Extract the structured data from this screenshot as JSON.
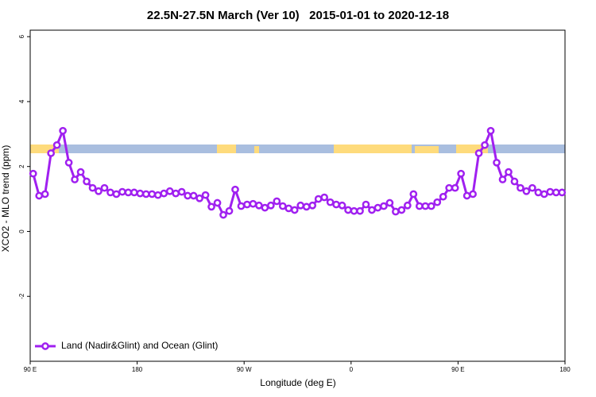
{
  "chart_data": {
    "type": "line",
    "title": "22.5N-27.5N March (Ver 10)   2015-01-01 to 2020-12-18",
    "x_label": "Longitude (deg E)",
    "y_label": "XCO2 - MLO trend (ppm)",
    "xlim": [
      90,
      540
    ],
    "ylim": [
      -4,
      6.2
    ],
    "xticks": [
      {
        "value": 90,
        "label": "90 E"
      },
      {
        "value": 180,
        "label": "180"
      },
      {
        "value": 270,
        "label": "90 W"
      },
      {
        "value": 360,
        "label": "0"
      },
      {
        "value": 450,
        "label": "90 E"
      },
      {
        "value": 540,
        "label": "180"
      }
    ],
    "yticks": [
      -2,
      0,
      2,
      4,
      6
    ],
    "grid": false,
    "legend_position": "bottom-left",
    "x": [
      92.5,
      97.5,
      102.5,
      107.5,
      112.5,
      117.5,
      122.5,
      127.5,
      132.5,
      137.5,
      142.5,
      147.5,
      152.5,
      157.5,
      162.5,
      167.5,
      172.5,
      177.5,
      182.5,
      187.5,
      192.5,
      197.5,
      202.5,
      207.5,
      212.5,
      217.5,
      222.5,
      227.5,
      232.5,
      237.5,
      242.5,
      247.5,
      252.5,
      257.5,
      262.5,
      267.5,
      272.5,
      277.5,
      282.5,
      287.5,
      292.5,
      297.5,
      302.5,
      307.5,
      312.5,
      317.5,
      322.5,
      327.5,
      332.5,
      337.5,
      342.5,
      347.5,
      352.5,
      357.5,
      362.5,
      367.5,
      372.5,
      377.5,
      382.5,
      387.5,
      392.5,
      397.5,
      402.5,
      407.5,
      412.5,
      417.5,
      422.5,
      427.5,
      432.5,
      437.5,
      442.5,
      447.5,
      452.5,
      457.5,
      462.5,
      467.5,
      472.5,
      477.5,
      482.5,
      487.5,
      492.5,
      497.5,
      502.5,
      507.5,
      512.5,
      517.5,
      522.5,
      527.5,
      532.5,
      537.5
    ],
    "series": [
      {
        "name": "Land (Nadir&Glint) and Ocean (Glint)",
        "color": "#a020f0",
        "values": [
          1.78,
          1.1,
          1.15,
          2.41,
          2.66,
          3.1,
          2.12,
          1.6,
          1.83,
          1.54,
          1.34,
          1.24,
          1.34,
          1.2,
          1.15,
          1.22,
          1.2,
          1.2,
          1.17,
          1.15,
          1.15,
          1.12,
          1.17,
          1.24,
          1.17,
          1.22,
          1.1,
          1.1,
          1.02,
          1.12,
          0.76,
          0.88,
          0.51,
          0.63,
          1.29,
          0.78,
          0.83,
          0.85,
          0.8,
          0.73,
          0.8,
          0.93,
          0.78,
          0.71,
          0.66,
          0.8,
          0.76,
          0.8,
          1.0,
          1.05,
          0.9,
          0.83,
          0.8,
          0.66,
          0.63,
          0.63,
          0.83,
          0.66,
          0.73,
          0.78,
          0.88,
          0.61,
          0.66,
          0.8,
          1.15,
          0.78,
          0.78,
          0.78,
          0.9,
          1.07,
          1.34,
          1.34,
          1.78,
          1.1,
          1.15,
          2.41,
          2.66,
          3.1,
          2.12,
          1.6,
          1.83,
          1.54,
          1.34,
          1.24,
          1.34,
          1.2,
          1.15,
          1.22,
          1.2,
          1.2
        ]
      }
    ]
  }
}
